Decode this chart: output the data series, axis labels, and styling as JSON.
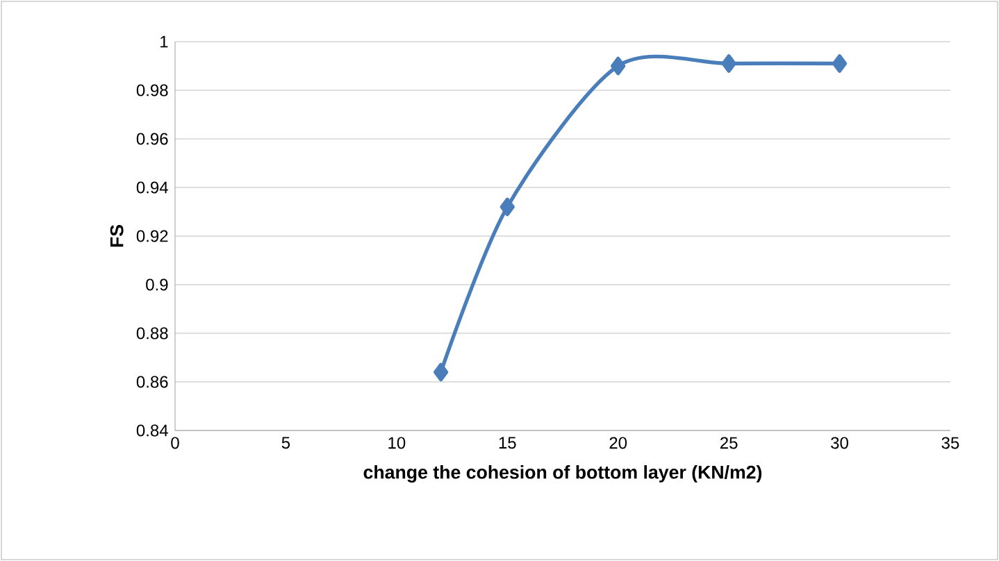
{
  "chart_data": {
    "type": "line",
    "xlabel": "change the cohesion of  bottom layer (KN/m2)",
    "ylabel": "FS",
    "x": [
      12,
      15,
      20,
      25,
      30
    ],
    "series": [
      {
        "color": "#4a7ebb",
        "values": [
          0.864,
          0.932,
          0.99,
          0.991,
          0.991
        ]
      }
    ],
    "xlim": [
      0,
      35
    ],
    "xticks": [
      0,
      5,
      10,
      15,
      20,
      25,
      30,
      35
    ],
    "ylim": [
      0.84,
      1
    ],
    "yticks": [
      0.84,
      0.86,
      0.88,
      0.9,
      0.92,
      0.94,
      0.96,
      0.98,
      1
    ],
    "grid": "y",
    "marker": "diamond",
    "line_style": "solid"
  }
}
